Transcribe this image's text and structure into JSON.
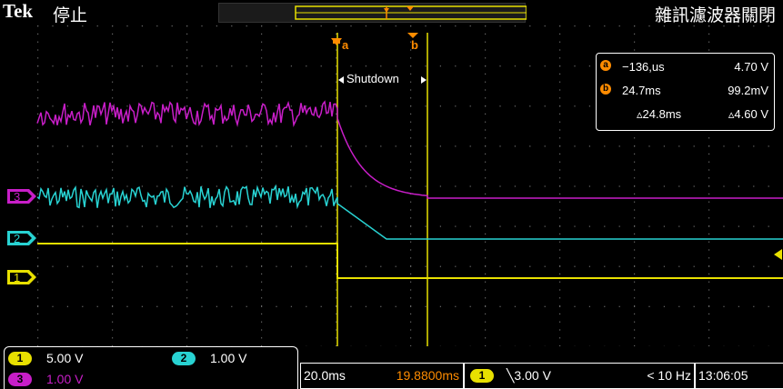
{
  "header": {
    "brand": "Tek",
    "run_state": "停止",
    "right_title": "雜訊濾波器關閉"
  },
  "annotations": {
    "shutdown_label": "Shutdown"
  },
  "cursors": {
    "a_label": "a",
    "b_label": "b"
  },
  "measurements": {
    "a": {
      "badge": "a",
      "time": "−136,us",
      "value": "4.70 V"
    },
    "b": {
      "badge": "b",
      "time": "24.7ms",
      "value": "99.2mV"
    },
    "delta": {
      "time": "▵24.8ms",
      "value": "▵4.60 V"
    }
  },
  "channels": [
    {
      "num": "1",
      "scale": "5.00 V",
      "color": "#e8e000"
    },
    {
      "num": "2",
      "scale": "1.00 V",
      "color": "#28d2d2"
    },
    {
      "num": "3",
      "scale": "1.00 V",
      "color": "#c81ec8"
    }
  ],
  "timebase": {
    "horizontal": "20.0ms",
    "position": "19.8800ms",
    "trigger_channel": "1",
    "trigger_level": "╲3.00 V",
    "trigger_freq": "< 10 Hz",
    "clock": "13:06:05"
  },
  "colors": {
    "ch1": "#e8e000",
    "ch2": "#28d2d2",
    "ch3": "#c81ec8",
    "cursor_badge": "#ff8c00",
    "grid": "#6c6c6c"
  }
}
